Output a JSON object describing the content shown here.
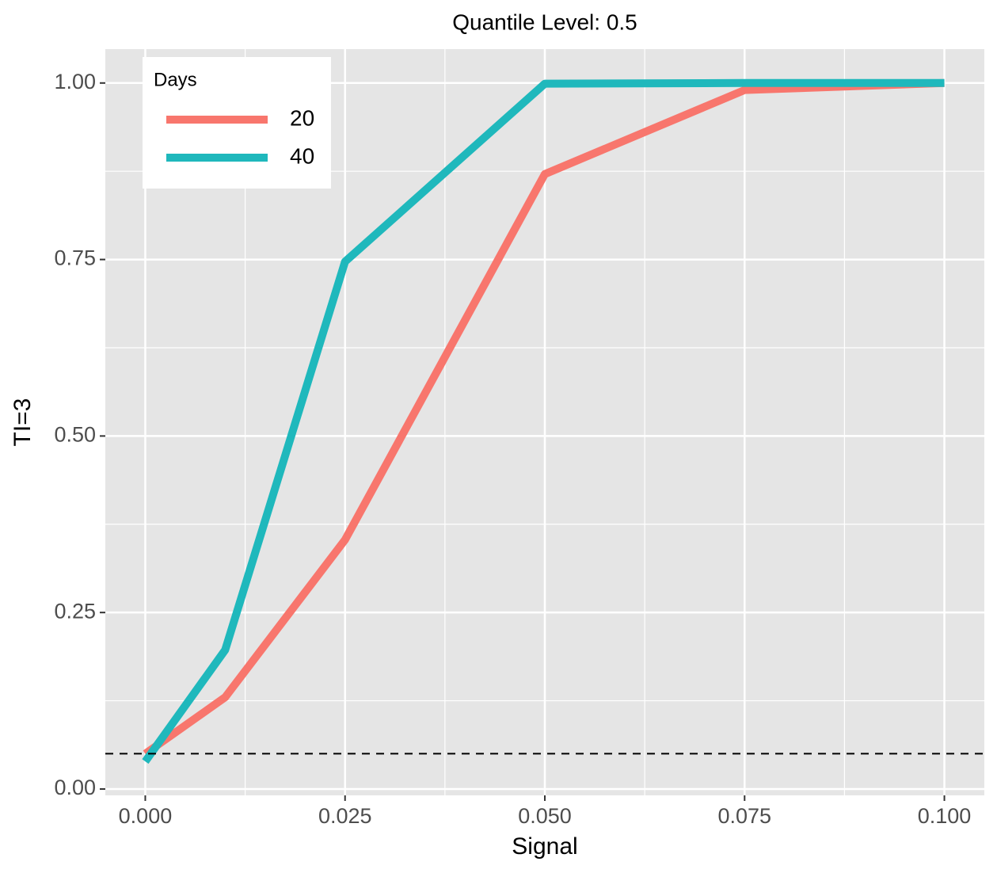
{
  "chart_data": {
    "type": "line",
    "title": "Quantile Level: 0.5",
    "x_label": "Signal",
    "y_label": "TI=3",
    "x": [
      0,
      0.01,
      0.025,
      0.05,
      0.075,
      0.1
    ],
    "series": [
      {
        "name": "20",
        "color": "#F8766D",
        "values": [
          0.05,
          0.13,
          0.353,
          0.871,
          0.99,
          1.0
        ]
      },
      {
        "name": "40",
        "color": "#1FB8BC",
        "values": [
          0.039,
          0.197,
          0.747,
          0.999,
          1.0,
          1.0
        ]
      }
    ],
    "legend_title": "Days",
    "legend": "top-left",
    "xlim": [
      -0.005,
      0.105
    ],
    "xticks": [
      {
        "value": 0,
        "label": "0.000"
      },
      {
        "value": 0.025,
        "label": "0.025"
      },
      {
        "value": 0.05,
        "label": "0.050"
      },
      {
        "value": 0.075,
        "label": "0.075"
      },
      {
        "value": 0.1,
        "label": "0.100"
      }
    ],
    "minor_xticks": [
      0.0125,
      0.0375,
      0.0625,
      0.0875
    ],
    "ylim": [
      -0.009,
      1.048
    ],
    "yticks": [
      {
        "value": 0,
        "label": "0.00"
      },
      {
        "value": 0.25,
        "label": "0.25"
      },
      {
        "value": 0.5,
        "label": "0.50"
      },
      {
        "value": 0.75,
        "label": "0.75"
      },
      {
        "value": 1,
        "label": "1.00"
      }
    ],
    "minor_yticks": [
      0.125,
      0.375,
      0.625,
      0.875
    ],
    "hline": 0.05,
    "grid": true
  }
}
